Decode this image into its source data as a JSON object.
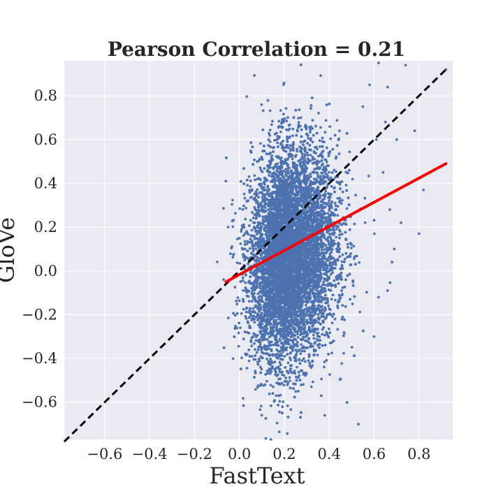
{
  "chart_data": {
    "type": "scatter",
    "title": "Pearson Correlation = 0.21",
    "xlabel": "FastText",
    "ylabel": "GloVe",
    "xlim": [
      -0.78,
      0.95
    ],
    "ylim": [
      -0.77,
      0.96
    ],
    "xticks": [
      -0.6,
      -0.4,
      -0.2,
      0.0,
      0.2,
      0.4,
      0.6,
      0.8
    ],
    "yticks": [
      -0.6,
      -0.4,
      -0.2,
      0.0,
      0.2,
      0.4,
      0.6,
      0.8
    ],
    "xtick_labels": [
      "−0.6",
      "−0.4",
      "−0.2",
      "0.0",
      "0.2",
      "0.4",
      "0.6",
      "0.8"
    ],
    "ytick_labels": [
      "−0.6",
      "−0.4",
      "−0.2",
      "0.0",
      "0.2",
      "0.4",
      "0.6",
      "0.8"
    ],
    "grid": true,
    "background": "#eaeaf2",
    "point_color": "#4c72b0",
    "series": [
      {
        "type": "scatter",
        "cluster": {
          "x_mean": 0.22,
          "x_std": 0.085,
          "y_mean": 0.07,
          "y_std": 0.24,
          "n": 9000
        },
        "outliers": [
          {
            "x": 0.92,
            "y": 0.92
          },
          {
            "x": 0.74,
            "y": 0.94
          },
          {
            "x": 0.62,
            "y": 0.95
          },
          {
            "x": 0.78,
            "y": 0.64
          },
          {
            "x": 0.8,
            "y": 0.17
          },
          {
            "x": 0.82,
            "y": 0.37
          },
          {
            "x": 0.7,
            "y": 0.6
          },
          {
            "x": 0.66,
            "y": 0.84
          },
          {
            "x": 0.65,
            "y": 0.68
          },
          {
            "x": 0.64,
            "y": 0.45
          },
          {
            "x": 0.69,
            "y": 0.1
          },
          {
            "x": 0.68,
            "y": 0.04
          },
          {
            "x": 0.62,
            "y": -0.12
          },
          {
            "x": 0.6,
            "y": -0.3
          },
          {
            "x": 0.66,
            "y": -0.09
          },
          {
            "x": 0.53,
            "y": -0.7
          },
          {
            "x": 0.38,
            "y": -0.66
          },
          {
            "x": 0.14,
            "y": -0.77
          },
          {
            "x": -0.06,
            "y": 0.41
          },
          {
            "x": -0.05,
            "y": 0.2
          },
          {
            "x": -0.07,
            "y": -0.04
          },
          {
            "x": 0.58,
            "y": 0.85
          },
          {
            "x": 0.55,
            "y": 0.75
          },
          {
            "x": 0.56,
            "y": 0.22
          },
          {
            "x": 0.61,
            "y": 0.6
          },
          {
            "x": 0.67,
            "y": 0.28
          },
          {
            "x": 0.72,
            "y": 0.22
          }
        ]
      },
      {
        "type": "line",
        "style": "dashed",
        "color": "#000000",
        "x": [
          -0.78,
          0.93
        ],
        "y": [
          -0.78,
          0.93
        ]
      },
      {
        "type": "line",
        "style": "solid",
        "color": "#ff0000",
        "x": [
          -0.06,
          0.92
        ],
        "y": [
          -0.05,
          0.49
        ]
      }
    ]
  }
}
